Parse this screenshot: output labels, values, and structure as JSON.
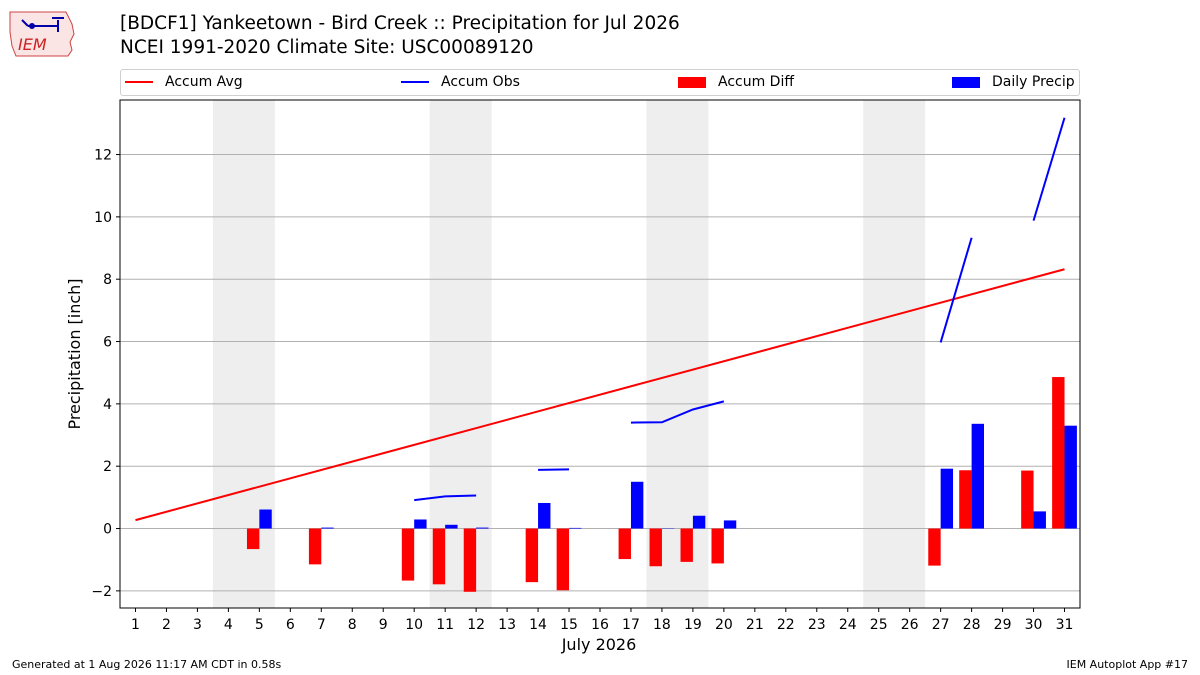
{
  "header": {
    "title_line1": "[BDCF1] Yankeetown - Bird Creek :: Precipitation for Jul 2026",
    "title_line2": "NCEI 1991-2020 Climate Site: USC00089120",
    "logo_text": "IEM"
  },
  "footer": {
    "generated": "Generated at 1 Aug 2026 11:17 AM CDT in 0.58s",
    "app": "IEM Autoplot App #17"
  },
  "colors": {
    "accum_avg": "#ff0000",
    "accum_obs": "#0000ff",
    "accum_diff": "#ff0000",
    "daily_precip": "#0000ff",
    "weekend_shade": "#eeeeee",
    "grid": "#b0b0b0"
  },
  "chart_data": {
    "type": "bar",
    "xlabel": "July 2026",
    "ylabel": "Precipitation [inch]",
    "ylim": [
      -2.55,
      13.75
    ],
    "xlim": [
      0.5,
      31.5
    ],
    "yticks": [
      -2,
      0,
      2,
      4,
      6,
      8,
      10,
      12
    ],
    "categories": [
      "1",
      "2",
      "3",
      "4",
      "5",
      "6",
      "7",
      "8",
      "9",
      "10",
      "11",
      "12",
      "13",
      "14",
      "15",
      "16",
      "17",
      "18",
      "19",
      "20",
      "21",
      "22",
      "23",
      "24",
      "25",
      "26",
      "27",
      "28",
      "29",
      "30",
      "31"
    ],
    "grid": "horizontal",
    "legend_position": "top",
    "weekends": [
      [
        4,
        5
      ],
      [
        11,
        12
      ],
      [
        18,
        19
      ],
      [
        25,
        26
      ]
    ],
    "legend": [
      {
        "label": "Accum Avg",
        "kind": "line",
        "color": "#ff0000"
      },
      {
        "label": "Accum Obs",
        "kind": "line",
        "color": "#0000ff"
      },
      {
        "label": "Accum Diff",
        "kind": "bar",
        "color": "#ff0000"
      },
      {
        "label": "Daily Precip",
        "kind": "bar",
        "color": "#0000ff"
      }
    ],
    "series": [
      {
        "name": "Accum Avg",
        "type": "line",
        "color": "#ff0000",
        "x": [
          1,
          31
        ],
        "values": [
          0.27,
          8.32
        ]
      },
      {
        "name": "Accum Obs",
        "type": "line",
        "color": "#0000ff",
        "segments": [
          {
            "x": [
              10,
              11,
              12
            ],
            "values": [
              0.91,
              1.03,
              1.06
            ]
          },
          {
            "x": [
              14,
              15
            ],
            "values": [
              1.88,
              1.9
            ]
          },
          {
            "x": [
              17,
              18,
              19,
              20
            ],
            "values": [
              3.4,
              3.41,
              3.82,
              4.08
            ]
          },
          {
            "x": [
              27,
              28
            ],
            "values": [
              5.97,
              9.33
            ]
          },
          {
            "x": [
              30,
              31
            ],
            "values": [
              9.88,
              13.18
            ]
          }
        ]
      },
      {
        "name": "Accum Diff",
        "type": "bar",
        "color": "#ff0000",
        "x": [
          5,
          7,
          10,
          11,
          12,
          14,
          15,
          17,
          18,
          19,
          20,
          27,
          28,
          30,
          31
        ],
        "values": [
          -0.66,
          -1.15,
          -1.67,
          -1.79,
          -2.03,
          -1.72,
          -1.98,
          -0.98,
          -1.21,
          -1.07,
          -1.12,
          -1.19,
          1.87,
          1.86,
          4.86
        ]
      },
      {
        "name": "Daily Precip",
        "type": "bar",
        "color": "#0000ff",
        "x": [
          5,
          7,
          10,
          11,
          12,
          14,
          15,
          17,
          18,
          19,
          20,
          27,
          28,
          30,
          31
        ],
        "values": [
          0.61,
          0.03,
          0.29,
          0.12,
          0.03,
          0.82,
          0.02,
          1.5,
          0.01,
          0.41,
          0.26,
          1.92,
          3.36,
          0.55,
          3.3
        ]
      }
    ]
  }
}
